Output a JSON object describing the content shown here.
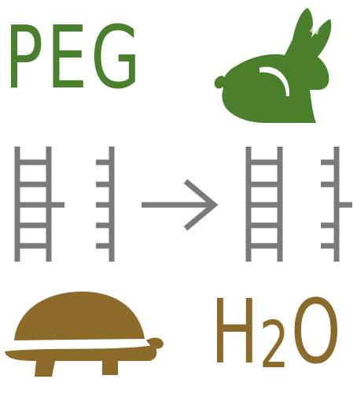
{
  "labels": {
    "top_left": "PEG",
    "bottom_right_main": "H",
    "bottom_right_sub": "2",
    "bottom_right_end": "O"
  },
  "icons": {
    "top_right": "rabbit-icon",
    "bottom_left": "turtle-icon",
    "center": "right-arrow-icon"
  },
  "colors": {
    "peg_green": "#4a7f2b",
    "water_brown": "#8b6a2a",
    "ladder_gray": "#7a7a7a"
  }
}
